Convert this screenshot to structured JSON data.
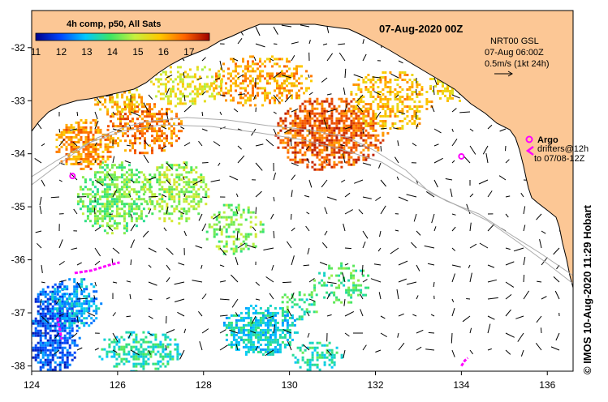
{
  "map": {
    "date_title": "07-Aug-2020 00Z",
    "product_label": "4h comp, p50, All Sats",
    "colorbar_ticks": [
      "11",
      "12",
      "13",
      "14",
      "15",
      "16",
      "17"
    ],
    "colorbar_range": [
      11,
      17.8
    ],
    "colorbar_colors": [
      "#00008c",
      "#0046ff",
      "#00c8ff",
      "#3ce664",
      "#c8f03c",
      "#ffc800",
      "#ff6400",
      "#a00000"
    ],
    "current_info": {
      "line1": "NRT00 GSL",
      "line2": "07-Aug 06:00Z",
      "line3": "0.5m/s (1kt 24h)"
    },
    "argo_label": "Argo",
    "drifters_line1": "drifters@12h",
    "drifters_line2": "to 07/08-12Z",
    "credit": "© IMOS 10-Aug-2020 11:29 Hobart",
    "x_axis": {
      "ticks": [
        "124",
        "126",
        "128",
        "130",
        "132",
        "134",
        "136"
      ],
      "values": [
        124,
        126,
        128,
        130,
        132,
        134,
        136
      ],
      "range": [
        124,
        136.6
      ]
    },
    "y_axis": {
      "ticks": [
        "-32",
        "-33",
        "-34",
        "-35",
        "-36",
        "-37",
        "-38"
      ],
      "values": [
        -32,
        -33,
        -34,
        -35,
        -36,
        -37,
        -38
      ],
      "range": [
        -31.3,
        -38.1
      ]
    },
    "colors": {
      "land": "#fcc795",
      "argo": "#ff00ff",
      "isobath": "#aaaaaa",
      "frame": "#000000"
    },
    "argo_float": {
      "lon": 124.95,
      "lat": -34.42
    },
    "argo_float_east": {
      "lon": 134.0,
      "lat": -34.05
    }
  }
}
